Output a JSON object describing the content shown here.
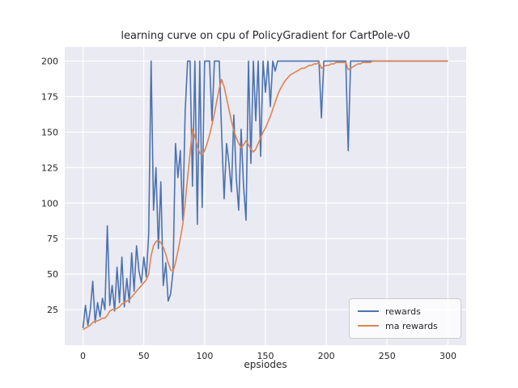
{
  "chart_data": {
    "type": "line",
    "title": "learning curve on cpu of PolicyGradient for CartPole-v0",
    "xlabel": "epsiodes",
    "ylabel": "",
    "xlim": [
      -15,
      315
    ],
    "ylim": [
      0,
      210
    ],
    "xticks": [
      0,
      50,
      100,
      150,
      200,
      250,
      300
    ],
    "yticks": [
      25,
      50,
      75,
      100,
      125,
      150,
      175,
      200
    ],
    "grid": true,
    "legend_position": "lower right",
    "x_start": 0,
    "x_step": 2,
    "colors": {
      "axes_background": "#eaeaf2",
      "grid": "#ffffff",
      "figure_background": "#ffffff",
      "tick_label": "#262626"
    },
    "series": [
      {
        "name": "rewards",
        "color": "#4c72b0",
        "values": [
          12,
          28,
          14,
          25,
          45,
          16,
          30,
          20,
          33,
          25,
          84,
          28,
          42,
          24,
          55,
          30,
          62,
          27,
          47,
          30,
          65,
          38,
          70,
          52,
          44,
          62,
          48,
          78,
          200,
          95,
          125,
          68,
          115,
          42,
          58,
          31,
          36,
          52,
          142,
          118,
          137,
          88,
          165,
          200,
          200,
          112,
          200,
          85,
          200,
          97,
          200,
          200,
          200,
          158,
          200,
          200,
          200,
          148,
          103,
          142,
          128,
          108,
          162,
          118,
          95,
          152,
          112,
          88,
          200,
          128,
          200,
          158,
          200,
          133,
          200,
          178,
          200,
          168,
          200,
          193,
          200,
          200,
          200,
          200,
          200,
          200,
          200,
          200,
          200,
          200,
          200,
          200,
          200,
          200,
          200,
          200,
          200,
          200,
          160,
          200,
          200,
          200,
          200,
          200,
          200,
          200,
          200,
          200,
          200,
          137,
          200,
          200,
          200,
          200,
          200,
          200,
          200,
          200,
          200,
          200,
          200,
          200,
          200,
          200,
          200,
          200,
          200,
          200,
          200,
          200,
          200,
          200,
          200,
          200,
          200,
          200,
          200,
          200,
          200,
          200,
          200,
          200,
          200,
          200,
          200,
          200,
          200,
          200,
          200,
          200,
          200
        ]
      },
      {
        "name": "ma rewards",
        "color": "#dd8452",
        "values": [
          11,
          12,
          13,
          14,
          16,
          17,
          17,
          18,
          19,
          19,
          21,
          24,
          25,
          25,
          26,
          27,
          29,
          30,
          31,
          32,
          34,
          36,
          38,
          40,
          42,
          44,
          46,
          50,
          63,
          70,
          73,
          74,
          72,
          69,
          64,
          58,
          53,
          52,
          58,
          66,
          75,
          85,
          100,
          118,
          135,
          152,
          147,
          140,
          135,
          134,
          137,
          142,
          148,
          155,
          163,
          172,
          181,
          187,
          182,
          174,
          166,
          158,
          151,
          146,
          142,
          139,
          141,
          144,
          141,
          138,
          136,
          138,
          142,
          146,
          150,
          153,
          157,
          161,
          166,
          171,
          176,
          180,
          183,
          186,
          188,
          190,
          191,
          192,
          193,
          194,
          195,
          195,
          196,
          197,
          197,
          198,
          198,
          199,
          195,
          196,
          197,
          197,
          198,
          198,
          199,
          199,
          199,
          199,
          199,
          194,
          195,
          196,
          197,
          198,
          198,
          199,
          199,
          199,
          199,
          200,
          200,
          200,
          200,
          200,
          200,
          200,
          200,
          200,
          200,
          200,
          200,
          200,
          200,
          200,
          200,
          200,
          200,
          200,
          200,
          200,
          200,
          200,
          200,
          200,
          200,
          200,
          200,
          200,
          200,
          200,
          200
        ]
      }
    ]
  }
}
